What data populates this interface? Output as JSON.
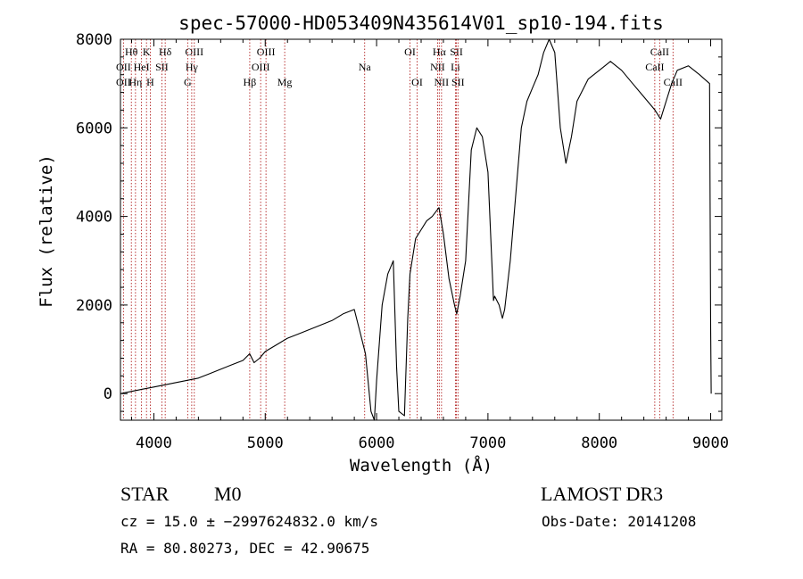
{
  "chart_data": {
    "type": "line",
    "title": "spec-57000-HD053409N435614V01_sp10-194.fits",
    "xlabel": "Wavelength (Å)",
    "ylabel": "Flux (relative)",
    "xlim": [
      3700,
      9100
    ],
    "ylim": [
      -600,
      8000
    ],
    "xticks": [
      4000,
      5000,
      6000,
      7000,
      8000,
      9000
    ],
    "yticks": [
      0,
      2000,
      4000,
      6000,
      8000
    ],
    "xtick_labels": [
      "4000",
      "5000",
      "6000",
      "7000",
      "8000",
      "9000"
    ],
    "ytick_labels": [
      "0",
      "2000",
      "4000",
      "6000",
      "8000"
    ],
    "series": [
      {
        "name": "spectrum",
        "x": [
          3700,
          3800,
          3900,
          4000,
          4100,
          4200,
          4300,
          4400,
          4500,
          4600,
          4700,
          4800,
          4860,
          4900,
          4950,
          5000,
          5100,
          5200,
          5300,
          5400,
          5500,
          5600,
          5700,
          5800,
          5850,
          5900,
          5950,
          5980,
          6000,
          6050,
          6100,
          6150,
          6180,
          6200,
          6250,
          6280,
          6300,
          6350,
          6400,
          6450,
          6500,
          6560,
          6600,
          6650,
          6700,
          6720,
          6750,
          6800,
          6850,
          6900,
          6950,
          7000,
          7050,
          7060,
          7100,
          7130,
          7150,
          7200,
          7250,
          7300,
          7350,
          7400,
          7450,
          7500,
          7550,
          7600,
          7650,
          7700,
          7750,
          7800,
          7900,
          8000,
          8100,
          8200,
          8300,
          8400,
          8500,
          8550,
          8600,
          8650,
          8700,
          8800,
          8900,
          8990,
          9000,
          9005
        ],
        "y": [
          0,
          50,
          100,
          150,
          200,
          250,
          300,
          350,
          450,
          550,
          650,
          750,
          900,
          700,
          800,
          950,
          1100,
          1250,
          1350,
          1450,
          1550,
          1650,
          1800,
          1900,
          1400,
          900,
          -400,
          -600,
          300,
          2000,
          2700,
          3000,
          600,
          -400,
          -500,
          1700,
          2700,
          3500,
          3700,
          3900,
          4000,
          4200,
          3600,
          2600,
          2000,
          1800,
          2200,
          3000,
          5500,
          6000,
          5800,
          5000,
          2100,
          2200,
          2000,
          1700,
          1900,
          3000,
          4500,
          6000,
          6600,
          6900,
          7200,
          7700,
          8000,
          7700,
          6000,
          5200,
          5800,
          6600,
          7100,
          7300,
          7500,
          7300,
          7000,
          6700,
          6400,
          6200,
          6600,
          7000,
          7300,
          7400,
          7200,
          7000,
          1500,
          0
        ]
      }
    ],
    "line_marks": [
      {
        "label": "Hθ",
        "x": 3798,
        "row": 1
      },
      {
        "label": "OII",
        "x": 3727,
        "row": 2
      },
      {
        "label": "OII",
        "x": 3727,
        "row": 3
      },
      {
        "label": "Hη",
        "x": 3835,
        "row": 3
      },
      {
        "label": "HeI",
        "x": 3889,
        "row": 2
      },
      {
        "label": "K",
        "x": 3934,
        "row": 1
      },
      {
        "label": "H",
        "x": 3968,
        "row": 3
      },
      {
        "label": "SII",
        "x": 4072,
        "row": 2
      },
      {
        "label": "Hδ",
        "x": 4102,
        "row": 1
      },
      {
        "label": "OIII",
        "x": 4363,
        "row": 1
      },
      {
        "label": "Hγ",
        "x": 4340,
        "row": 2
      },
      {
        "label": "G",
        "x": 4304,
        "row": 3
      },
      {
        "label": "Hβ",
        "x": 4861,
        "row": 3
      },
      {
        "label": "OIII",
        "x": 5007,
        "row": 1
      },
      {
        "label": "OIII",
        "x": 4959,
        "row": 2
      },
      {
        "label": "Mg",
        "x": 5175,
        "row": 3
      },
      {
        "label": "Na",
        "x": 5893,
        "row": 2
      },
      {
        "label": "OI",
        "x": 6300,
        "row": 1
      },
      {
        "label": "OI",
        "x": 6364,
        "row": 3
      },
      {
        "label": "Hα",
        "x": 6563,
        "row": 1
      },
      {
        "label": "NII",
        "x": 6548,
        "row": 2
      },
      {
        "label": "NII",
        "x": 6583,
        "row": 3
      },
      {
        "label": "SII",
        "x": 6717,
        "row": 1
      },
      {
        "label": "Li",
        "x": 6708,
        "row": 2
      },
      {
        "label": "SII",
        "x": 6731,
        "row": 3
      },
      {
        "label": "CaII",
        "x": 8542,
        "row": 1
      },
      {
        "label": "CaII",
        "x": 8498,
        "row": 2
      },
      {
        "label": "CaII",
        "x": 8662,
        "row": 3
      }
    ]
  },
  "info": {
    "class": "STAR",
    "subclass": "M0",
    "survey": "LAMOST DR3",
    "cz": "cz = 15.0 ± −2997624832.0 km/s",
    "obs_date": "Obs-Date: 20141208",
    "coords": "RA =  80.80273, DEC =  42.90675"
  },
  "colors": {
    "line": "#000000",
    "marker": "#b22222",
    "background": "#ffffff"
  }
}
